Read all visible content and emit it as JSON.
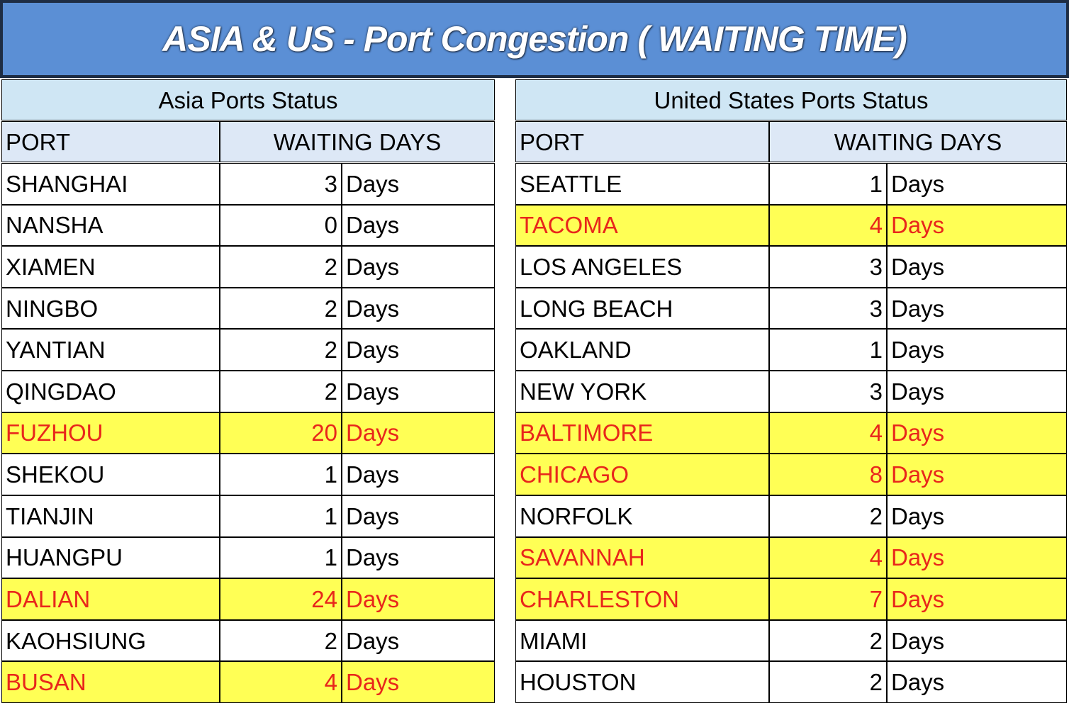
{
  "title": "ASIA & US - Port Congestion ( WAITING TIME)",
  "tables": [
    {
      "title": "Asia Ports Status",
      "headers": [
        "PORT",
        "WAITING DAYS"
      ],
      "rows": [
        {
          "port": "SHANGHAI",
          "days": 3,
          "unit": "Days",
          "highlight": false
        },
        {
          "port": "NANSHA",
          "days": 0,
          "unit": "Days",
          "highlight": false
        },
        {
          "port": "XIAMEN",
          "days": 2,
          "unit": "Days",
          "highlight": false
        },
        {
          "port": "NINGBO",
          "days": 2,
          "unit": "Days",
          "highlight": false
        },
        {
          "port": "YANTIAN",
          "days": 2,
          "unit": "Days",
          "highlight": false
        },
        {
          "port": "QINGDAO",
          "days": 2,
          "unit": "Days",
          "highlight": false
        },
        {
          "port": "FUZHOU",
          "days": 20,
          "unit": "Days",
          "highlight": true
        },
        {
          "port": "SHEKOU",
          "days": 1,
          "unit": "Days",
          "highlight": false
        },
        {
          "port": "TIANJIN",
          "days": 1,
          "unit": "Days",
          "highlight": false
        },
        {
          "port": "HUANGPU",
          "days": 1,
          "unit": "Days",
          "highlight": false
        },
        {
          "port": "DALIAN",
          "days": 24,
          "unit": "Days",
          "highlight": true
        },
        {
          "port": "KAOHSIUNG",
          "days": 2,
          "unit": "Days",
          "highlight": false
        },
        {
          "port": "BUSAN",
          "days": 4,
          "unit": "Days",
          "highlight": true
        }
      ]
    },
    {
      "title": "United States Ports Status",
      "headers": [
        "PORT",
        "WAITING DAYS"
      ],
      "rows": [
        {
          "port": "SEATTLE",
          "days": 1,
          "unit": "Days",
          "highlight": false
        },
        {
          "port": "TACOMA",
          "days": 4,
          "unit": "Days",
          "highlight": true
        },
        {
          "port": "LOS ANGELES",
          "days": 3,
          "unit": "Days",
          "highlight": false
        },
        {
          "port": "LONG BEACH",
          "days": 3,
          "unit": "Days",
          "highlight": false
        },
        {
          "port": "OAKLAND",
          "days": 1,
          "unit": "Days",
          "highlight": false
        },
        {
          "port": "NEW YORK",
          "days": 3,
          "unit": "Days",
          "highlight": false
        },
        {
          "port": "BALTIMORE",
          "days": 4,
          "unit": "Days",
          "highlight": true
        },
        {
          "port": "CHICAGO",
          "days": 8,
          "unit": "Days",
          "highlight": true
        },
        {
          "port": "NORFOLK",
          "days": 2,
          "unit": "Days",
          "highlight": false
        },
        {
          "port": "SAVANNAH",
          "days": 4,
          "unit": "Days",
          "highlight": true
        },
        {
          "port": "CHARLESTON",
          "days": 7,
          "unit": "Days",
          "highlight": true
        },
        {
          "port": "MIAMI",
          "days": 2,
          "unit": "Days",
          "highlight": false
        },
        {
          "port": "HOUSTON",
          "days": 2,
          "unit": "Days",
          "highlight": false
        }
      ]
    }
  ]
}
